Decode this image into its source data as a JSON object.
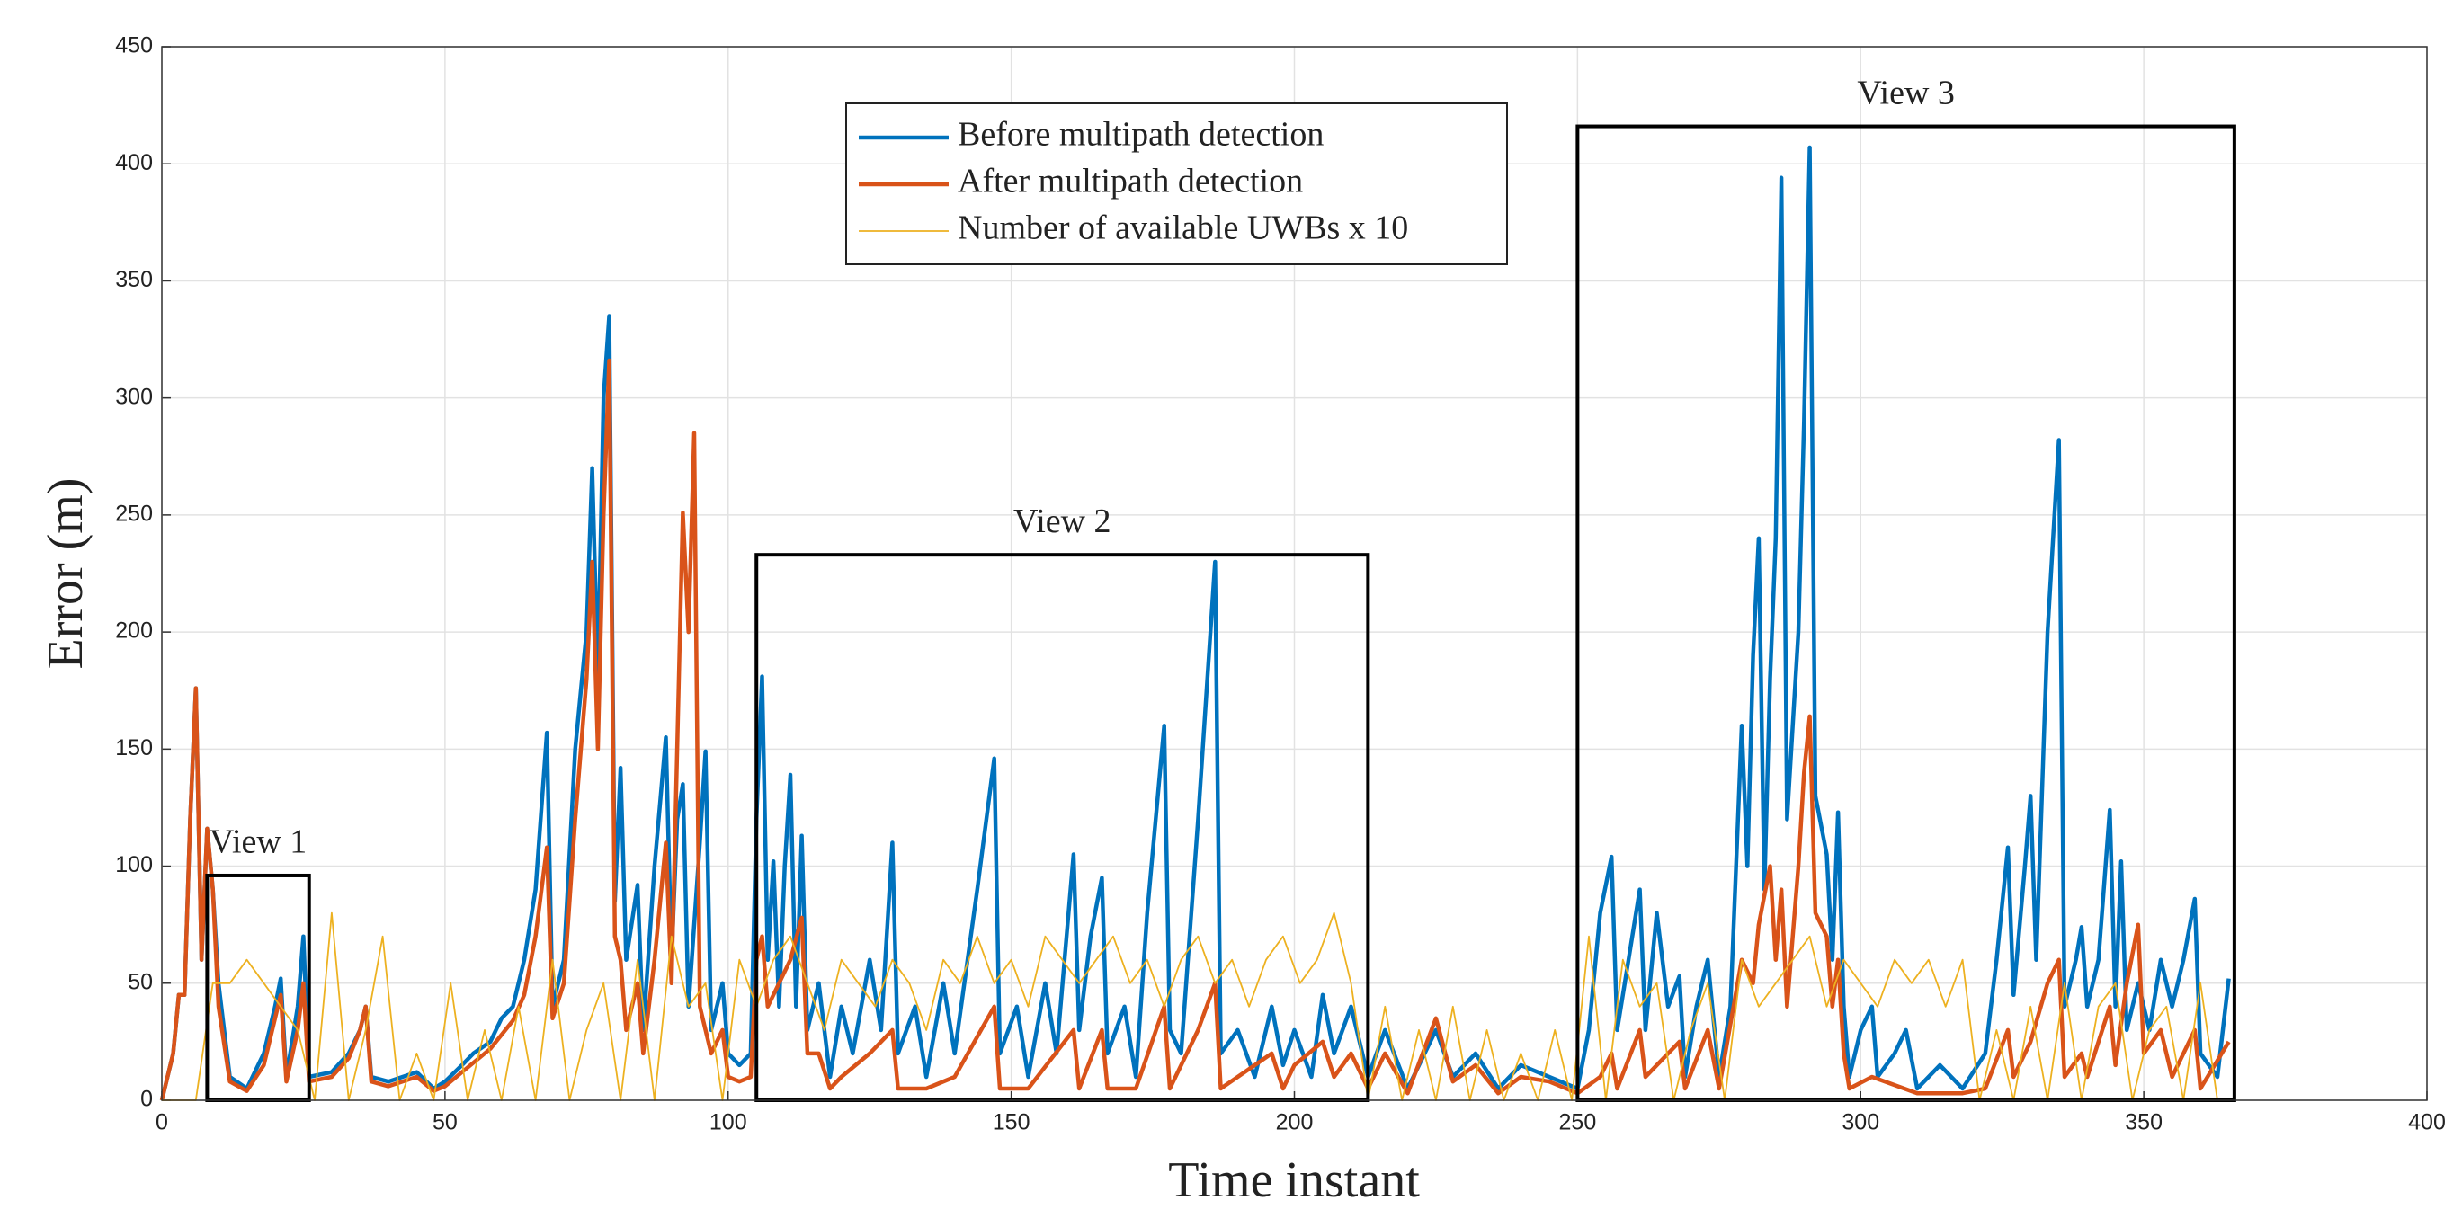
{
  "chart_data": {
    "type": "line",
    "xlabel": "Time instant",
    "ylabel": "Error (m)",
    "xlim": [
      0,
      400
    ],
    "xticks": [
      0,
      50,
      100,
      150,
      200,
      250,
      300,
      350,
      400
    ],
    "ylim": [
      0,
      450
    ],
    "yticks": [
      0,
      50,
      100,
      150,
      200,
      250,
      300,
      350,
      400,
      450
    ],
    "grid": true,
    "legend": "top-center",
    "series": [
      {
        "name": "Before multipath detection",
        "color": "#0072BD",
        "x": [
          0,
          2,
          3,
          4,
          5,
          6,
          7,
          8,
          9,
          10,
          12,
          15,
          18,
          20,
          21,
          22,
          24,
          25,
          26,
          30,
          33,
          35,
          36,
          37,
          40,
          45,
          48,
          50,
          53,
          55,
          58,
          60,
          62,
          64,
          66,
          68,
          69,
          71,
          73,
          75,
          76,
          77,
          78,
          79,
          80,
          81,
          82,
          84,
          85,
          87,
          89,
          90,
          91,
          92,
          93,
          95,
          96,
          97,
          99,
          100,
          102,
          104,
          105,
          106,
          107,
          108,
          109,
          110,
          111,
          112,
          113,
          114,
          116,
          118,
          120,
          122,
          125,
          127,
          129,
          130,
          133,
          135,
          138,
          140,
          144,
          147,
          148,
          151,
          153,
          156,
          158,
          161,
          162,
          164,
          166,
          167,
          170,
          172,
          174,
          177,
          178,
          180,
          183,
          186,
          187,
          190,
          193,
          196,
          198,
          200,
          203,
          205,
          207,
          210,
          213,
          216,
          220,
          225,
          228,
          232,
          236,
          240,
          245,
          250,
          252,
          254,
          256,
          257,
          259,
          261,
          262,
          264,
          266,
          268,
          269,
          271,
          273,
          275,
          277,
          279,
          280,
          281,
          282,
          283,
          284,
          285,
          286,
          287,
          289,
          290,
          291,
          292,
          294,
          295,
          296,
          297,
          298,
          300,
          302,
          303,
          306,
          308,
          310,
          314,
          318,
          322,
          324,
          326,
          327,
          329,
          330,
          331,
          333,
          335,
          336,
          338,
          339,
          340,
          342,
          344,
          345,
          346,
          347,
          349,
          351,
          353,
          355,
          357,
          359,
          360,
          363,
          365
        ],
        "values": [
          0,
          20,
          45,
          45,
          120,
          176,
          60,
          116,
          90,
          50,
          10,
          5,
          20,
          40,
          52,
          10,
          40,
          70,
          10,
          12,
          20,
          30,
          40,
          10,
          8,
          12,
          5,
          8,
          15,
          20,
          25,
          35,
          40,
          60,
          90,
          157,
          40,
          60,
          150,
          200,
          270,
          180,
          300,
          335,
          85,
          142,
          60,
          92,
          30,
          100,
          155,
          60,
          120,
          135,
          40,
          110,
          149,
          30,
          50,
          20,
          15,
          20,
          120,
          181,
          60,
          102,
          40,
          100,
          139,
          40,
          113,
          30,
          50,
          10,
          40,
          20,
          60,
          30,
          110,
          20,
          40,
          10,
          50,
          20,
          90,
          146,
          20,
          40,
          10,
          50,
          20,
          105,
          30,
          70,
          95,
          20,
          40,
          10,
          80,
          160,
          30,
          20,
          120,
          230,
          20,
          30,
          10,
          40,
          15,
          30,
          10,
          45,
          20,
          40,
          10,
          30,
          5,
          30,
          10,
          20,
          5,
          15,
          10,
          5,
          30,
          80,
          104,
          30,
          60,
          90,
          30,
          80,
          40,
          53,
          10,
          40,
          60,
          10,
          40,
          160,
          100,
          190,
          240,
          90,
          180,
          240,
          394,
          120,
          200,
          290,
          407,
          130,
          105,
          60,
          123,
          40,
          10,
          30,
          40,
          10,
          20,
          30,
          5,
          15,
          5,
          20,
          60,
          108,
          45,
          100,
          130,
          60,
          200,
          282,
          40,
          60,
          74,
          40,
          60,
          124,
          40,
          102,
          30,
          50,
          30,
          60,
          40,
          60,
          86,
          20,
          10,
          52
        ]
      },
      {
        "name": "After multipath detection",
        "color": "#D95319",
        "x": [
          0,
          2,
          3,
          4,
          5,
          6,
          7,
          8,
          9,
          10,
          12,
          15,
          18,
          20,
          21,
          22,
          24,
          25,
          26,
          30,
          33,
          35,
          36,
          37,
          40,
          45,
          48,
          50,
          53,
          55,
          58,
          60,
          62,
          64,
          66,
          68,
          69,
          71,
          73,
          75,
          76,
          77,
          78,
          79,
          80,
          81,
          82,
          84,
          85,
          87,
          89,
          90,
          91,
          92,
          93,
          94,
          95,
          97,
          99,
          100,
          102,
          104,
          105,
          106,
          107,
          109,
          111,
          113,
          114,
          116,
          118,
          120,
          125,
          129,
          130,
          135,
          140,
          147,
          148,
          153,
          161,
          162,
          166,
          167,
          172,
          177,
          178,
          183,
          186,
          187,
          190,
          196,
          198,
          200,
          205,
          207,
          210,
          213,
          216,
          220,
          225,
          228,
          232,
          236,
          240,
          245,
          250,
          254,
          256,
          257,
          261,
          262,
          266,
          268,
          269,
          273,
          275,
          279,
          281,
          282,
          284,
          285,
          286,
          287,
          289,
          290,
          291,
          292,
          294,
          295,
          296,
          297,
          298,
          302,
          310,
          318,
          322,
          326,
          327,
          330,
          333,
          335,
          336,
          339,
          340,
          344,
          345,
          347,
          349,
          350,
          353,
          355,
          359,
          360,
          365
        ],
        "values": [
          0,
          20,
          45,
          45,
          120,
          176,
          60,
          116,
          90,
          40,
          8,
          4,
          15,
          35,
          45,
          8,
          30,
          50,
          8,
          10,
          18,
          30,
          40,
          8,
          6,
          10,
          4,
          6,
          12,
          16,
          22,
          28,
          34,
          45,
          70,
          108,
          35,
          50,
          120,
          180,
          230,
          150,
          250,
          316,
          70,
          60,
          30,
          50,
          20,
          60,
          110,
          50,
          150,
          251,
          200,
          285,
          40,
          20,
          30,
          10,
          8,
          10,
          60,
          70,
          40,
          50,
          60,
          78,
          20,
          20,
          5,
          10,
          20,
          30,
          5,
          5,
          10,
          40,
          5,
          5,
          30,
          5,
          30,
          5,
          5,
          40,
          5,
          30,
          50,
          5,
          10,
          20,
          5,
          15,
          25,
          10,
          20,
          5,
          20,
          3,
          35,
          8,
          15,
          3,
          10,
          8,
          3,
          10,
          20,
          5,
          30,
          10,
          20,
          25,
          5,
          30,
          5,
          60,
          50,
          75,
          100,
          60,
          90,
          40,
          100,
          140,
          164,
          80,
          70,
          40,
          60,
          20,
          5,
          10,
          3,
          3,
          5,
          30,
          10,
          25,
          50,
          60,
          10,
          20,
          10,
          40,
          15,
          50,
          75,
          20,
          30,
          10,
          30,
          5,
          25
        ]
      },
      {
        "name": "Number of available UWBs x 10",
        "color": "#EDB120",
        "x": [
          0,
          3,
          6,
          9,
          12,
          15,
          18,
          21,
          24,
          27,
          30,
          33,
          36,
          39,
          42,
          45,
          48,
          51,
          54,
          57,
          60,
          63,
          66,
          69,
          72,
          75,
          78,
          81,
          84,
          87,
          90,
          93,
          96,
          99,
          102,
          105,
          108,
          111,
          114,
          117,
          120,
          123,
          126,
          129,
          132,
          135,
          138,
          141,
          144,
          147,
          150,
          153,
          156,
          159,
          162,
          165,
          168,
          171,
          174,
          177,
          180,
          183,
          186,
          189,
          192,
          195,
          198,
          201,
          204,
          207,
          210,
          213,
          216,
          219,
          222,
          225,
          228,
          231,
          234,
          237,
          240,
          243,
          246,
          249,
          252,
          255,
          258,
          261,
          264,
          267,
          270,
          273,
          276,
          279,
          282,
          285,
          288,
          291,
          294,
          297,
          300,
          303,
          306,
          309,
          312,
          315,
          318,
          321,
          324,
          327,
          330,
          333,
          336,
          339,
          342,
          345,
          348,
          351,
          354,
          357,
          360,
          363
        ],
        "values": [
          0,
          0,
          0,
          50,
          50,
          60,
          50,
          40,
          30,
          0,
          80,
          0,
          30,
          70,
          0,
          20,
          0,
          50,
          0,
          30,
          0,
          40,
          0,
          60,
          0,
          30,
          50,
          0,
          60,
          0,
          70,
          40,
          50,
          0,
          60,
          40,
          60,
          70,
          50,
          30,
          60,
          50,
          40,
          60,
          50,
          30,
          60,
          50,
          70,
          50,
          60,
          40,
          70,
          60,
          50,
          60,
          70,
          50,
          60,
          40,
          60,
          70,
          50,
          60,
          40,
          60,
          70,
          50,
          60,
          80,
          50,
          0,
          40,
          0,
          30,
          0,
          40,
          0,
          30,
          0,
          20,
          0,
          30,
          0,
          70,
          0,
          60,
          40,
          50,
          0,
          30,
          50,
          0,
          60,
          40,
          50,
          60,
          70,
          40,
          60,
          50,
          40,
          60,
          50,
          60,
          40,
          60,
          0,
          30,
          0,
          40,
          0,
          50,
          0,
          40,
          50,
          0,
          30,
          40,
          0,
          50,
          0
        ]
      }
    ],
    "annotations": [
      {
        "text": "View 1",
        "xlim": [
          8,
          26
        ],
        "ylim": [
          0,
          96
        ]
      },
      {
        "text": "View 2",
        "xlim": [
          105,
          213
        ],
        "ylim": [
          0,
          233
        ]
      },
      {
        "text": "View 3",
        "xlim": [
          250,
          366
        ],
        "ylim": [
          0,
          416
        ]
      }
    ]
  }
}
